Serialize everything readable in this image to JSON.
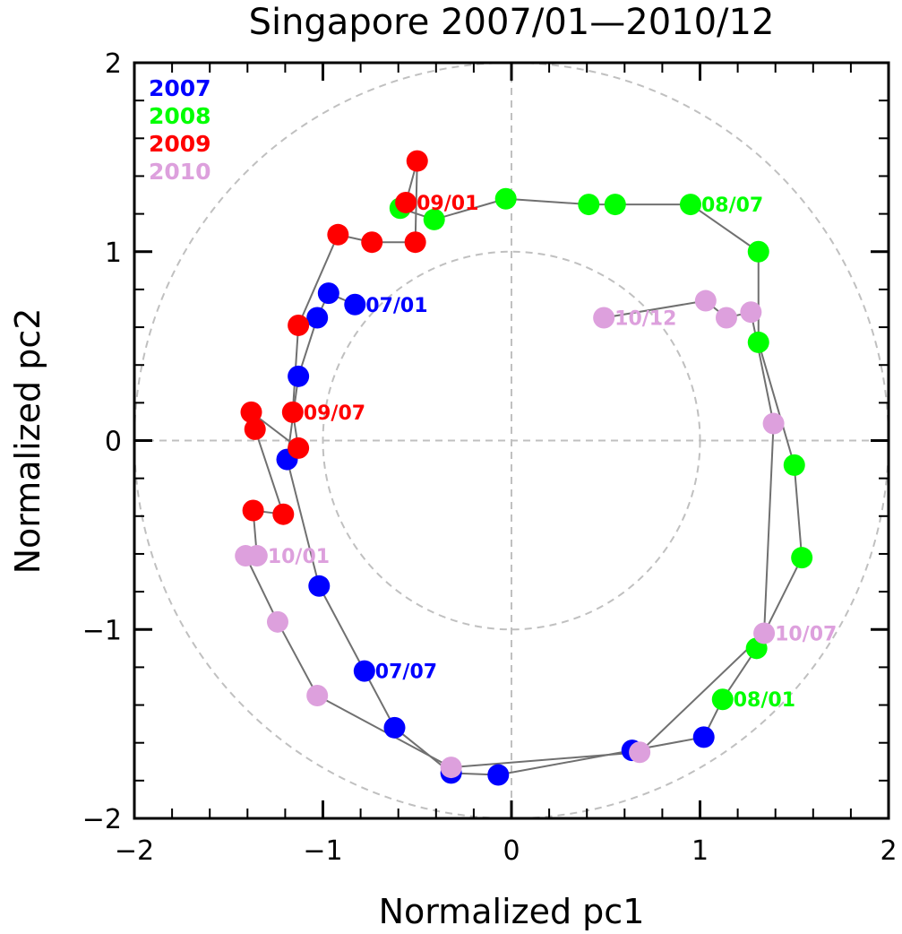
{
  "chart_data": {
    "type": "scatter",
    "title": "Singapore 2007/01—2010/12",
    "xlabel": "Normalized pc1",
    "ylabel": "Normalized pc2",
    "xlim": [
      -2,
      2
    ],
    "ylim": [
      -2,
      2
    ],
    "xticks": [
      -2,
      -1,
      0,
      1,
      2
    ],
    "yticks": [
      -2,
      -1,
      0,
      1,
      2
    ],
    "xtick_labels": [
      "−2",
      "−1",
      "0",
      "1",
      "2"
    ],
    "ytick_labels": [
      "−2",
      "−1",
      "0",
      "1",
      "2"
    ],
    "minor_tick_step": 0.2,
    "reference_circles": [
      1,
      2
    ],
    "reference_lines": [
      "x=0",
      "y=0"
    ],
    "connected_path": true,
    "path_color": "#707070",
    "legend_position": "top-left",
    "series": [
      {
        "name": "2007",
        "color": "#0000ff",
        "points": [
          {
            "label": "07/01",
            "x": -0.83,
            "y": 0.72,
            "show_label": true
          },
          {
            "label": "07/02",
            "x": -0.97,
            "y": 0.78
          },
          {
            "label": "07/03",
            "x": -1.03,
            "y": 0.65
          },
          {
            "label": "07/04",
            "x": -1.13,
            "y": 0.34
          },
          {
            "label": "07/05",
            "x": -1.19,
            "y": -0.1
          },
          {
            "label": "07/06",
            "x": -1.02,
            "y": -0.77
          },
          {
            "label": "07/07",
            "x": -0.78,
            "y": -1.22,
            "show_label": true
          },
          {
            "label": "07/08",
            "x": -0.62,
            "y": -1.52
          },
          {
            "label": "07/09",
            "x": -0.32,
            "y": -1.76
          },
          {
            "label": "07/10",
            "x": -0.07,
            "y": -1.77
          },
          {
            "label": "07/11",
            "x": 0.64,
            "y": -1.64
          },
          {
            "label": "07/12",
            "x": 1.02,
            "y": -1.57
          }
        ]
      },
      {
        "name": "2008",
        "color": "#00ff00",
        "points": [
          {
            "label": "08/01",
            "x": 1.12,
            "y": -1.37,
            "show_label": true
          },
          {
            "label": "08/02",
            "x": 1.3,
            "y": -1.1
          },
          {
            "label": "08/03",
            "x": 1.54,
            "y": -0.62
          },
          {
            "label": "08/04",
            "x": 1.5,
            "y": -0.13
          },
          {
            "label": "08/05",
            "x": 1.31,
            "y": 0.52
          },
          {
            "label": "08/06",
            "x": 1.31,
            "y": 1.0
          },
          {
            "label": "08/07",
            "x": 0.95,
            "y": 1.25,
            "show_label": true
          },
          {
            "label": "08/08",
            "x": 0.55,
            "y": 1.25
          },
          {
            "label": "08/09",
            "x": 0.41,
            "y": 1.25
          },
          {
            "label": "08/10",
            "x": -0.03,
            "y": 1.28
          },
          {
            "label": "08/11",
            "x": -0.41,
            "y": 1.17
          },
          {
            "label": "08/12",
            "x": -0.59,
            "y": 1.23
          }
        ]
      },
      {
        "name": "2009",
        "color": "#ff0000",
        "points": [
          {
            "label": "09/01",
            "x": -0.56,
            "y": 1.26,
            "show_label": true
          },
          {
            "label": "09/02",
            "x": -0.5,
            "y": 1.48
          },
          {
            "label": "09/03",
            "x": -0.51,
            "y": 1.05
          },
          {
            "label": "09/04",
            "x": -0.74,
            "y": 1.05
          },
          {
            "label": "09/05",
            "x": -0.92,
            "y": 1.09
          },
          {
            "label": "09/06",
            "x": -1.13,
            "y": 0.61
          },
          {
            "label": "09/07",
            "x": -1.16,
            "y": 0.15,
            "show_label": true
          },
          {
            "label": "09/08",
            "x": -1.13,
            "y": -0.04
          },
          {
            "label": "09/09",
            "x": -1.38,
            "y": 0.15
          },
          {
            "label": "09/10",
            "x": -1.36,
            "y": 0.06
          },
          {
            "label": "09/11",
            "x": -1.21,
            "y": -0.39
          },
          {
            "label": "09/12",
            "x": -1.37,
            "y": -0.37
          }
        ]
      },
      {
        "name": "2010",
        "color": "#dda0dd",
        "points": [
          {
            "label": "10/01",
            "x": -1.35,
            "y": -0.61,
            "show_label": true
          },
          {
            "label": "10/02",
            "x": -1.41,
            "y": -0.61
          },
          {
            "label": "10/03",
            "x": -1.24,
            "y": -0.96
          },
          {
            "label": "10/04",
            "x": -1.03,
            "y": -1.35
          },
          {
            "label": "10/05",
            "x": -0.32,
            "y": -1.73
          },
          {
            "label": "10/06",
            "x": 0.68,
            "y": -1.65
          },
          {
            "label": "10/07",
            "x": 1.34,
            "y": -1.02,
            "show_label": true
          },
          {
            "label": "10/08",
            "x": 1.39,
            "y": 0.09
          },
          {
            "label": "10/09",
            "x": 1.27,
            "y": 0.68
          },
          {
            "label": "10/10",
            "x": 1.14,
            "y": 0.65
          },
          {
            "label": "10/11",
            "x": 1.03,
            "y": 0.74
          },
          {
            "label": "10/12",
            "x": 0.49,
            "y": 0.65,
            "show_label": true
          }
        ]
      }
    ]
  }
}
